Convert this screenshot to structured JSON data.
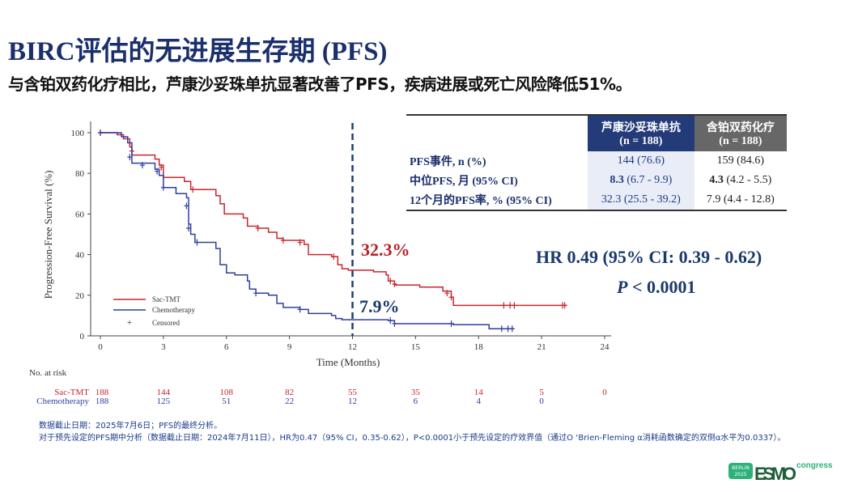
{
  "title": "BIRC评估的无进展生存期 (PFS)",
  "subtitle": "与含铂双药化疗相比，芦康沙妥珠单抗显著改善了PFS，疾病进展或死亡风险降低51%。",
  "table": {
    "headers": [
      {
        "name": "芦康沙妥珠单抗",
        "n": "(n = 188)"
      },
      {
        "name": "含铂双药化疗",
        "n": "(n = 188)"
      }
    ],
    "rows": [
      {
        "label": "PFS事件, n (%)",
        "a": "144 (76.6)",
        "b": "159 (84.6)"
      },
      {
        "label": "中位PFS, 月 (95% CI)",
        "a_bold": "8.3",
        "a": " (6.7 - 9.9)",
        "b_bold": "4.3",
        "b": " (4.2 - 5.5)"
      },
      {
        "label": "12个月的PFS率, % (95% CI)",
        "a": "32.3 (25.5 - 39.2)",
        "b": "7.9 (4.4 - 12.8)"
      }
    ],
    "colors": {
      "a": "#243b7a",
      "b": "#676767"
    }
  },
  "hr_text": "HR 0.49 (95% CI: 0.39 - 0.62)",
  "p_italic": "P",
  "p_text": " < 0.0001",
  "annotations": {
    "sac": "32.3%",
    "chemo": "7.9%"
  },
  "chart_data": {
    "type": "line",
    "step": true,
    "xlabel": "Time (Months)",
    "ylabel": "Progression-Free Survival (%)",
    "xlim": [
      0,
      24
    ],
    "ylim": [
      0,
      100
    ],
    "xticks": [
      0,
      3,
      6,
      9,
      12,
      15,
      18,
      21,
      24
    ],
    "yticks": [
      0,
      20,
      40,
      60,
      80,
      100
    ],
    "reference_line_x": 12,
    "legend": {
      "placement": "bottom-left",
      "censored_label": "Censored"
    },
    "series": [
      {
        "name": "Sac-TMT",
        "color": "#c8262e",
        "points": [
          [
            0,
            100
          ],
          [
            0.8,
            99
          ],
          [
            1.1,
            97
          ],
          [
            1.4,
            93
          ],
          [
            1.5,
            89
          ],
          [
            2.6,
            87
          ],
          [
            2.8,
            84
          ],
          [
            3.0,
            78
          ],
          [
            4.0,
            76
          ],
          [
            4.3,
            72
          ],
          [
            5.5,
            69
          ],
          [
            5.7,
            65
          ],
          [
            5.9,
            60
          ],
          [
            6.8,
            58
          ],
          [
            7.0,
            54
          ],
          [
            7.5,
            53
          ],
          [
            8.0,
            51
          ],
          [
            8.4,
            48
          ],
          [
            8.7,
            47
          ],
          [
            9.7,
            45
          ],
          [
            9.9,
            40
          ],
          [
            11.0,
            39
          ],
          [
            11.3,
            35
          ],
          [
            11.5,
            33
          ],
          [
            11.8,
            32.3
          ],
          [
            13.0,
            31.5
          ],
          [
            13.6,
            30
          ],
          [
            13.7,
            27
          ],
          [
            14.0,
            25
          ],
          [
            15.2,
            24
          ],
          [
            16.3,
            22
          ],
          [
            16.7,
            19
          ],
          [
            16.8,
            15
          ],
          [
            22.2,
            15
          ]
        ],
        "censored": [
          [
            0,
            100
          ],
          [
            1.5,
            91
          ],
          [
            2.9,
            83
          ],
          [
            4.4,
            72
          ],
          [
            7.5,
            53
          ],
          [
            8.7,
            47
          ],
          [
            9.5,
            46
          ],
          [
            11.1,
            39
          ],
          [
            13.8,
            27
          ],
          [
            14,
            25.5
          ],
          [
            16.5,
            21
          ],
          [
            16.7,
            19
          ],
          [
            19.2,
            15
          ],
          [
            19.5,
            15
          ],
          [
            19.7,
            15
          ],
          [
            22,
            15
          ],
          [
            22.1,
            15
          ]
        ]
      },
      {
        "name": "Chemotherapy",
        "color": "#2e3f9e",
        "points": [
          [
            0,
            100
          ],
          [
            1.0,
            98
          ],
          [
            1.3,
            95
          ],
          [
            1.5,
            85
          ],
          [
            2.6,
            82
          ],
          [
            2.8,
            79
          ],
          [
            3.0,
            73
          ],
          [
            3.6,
            70
          ],
          [
            4.1,
            68
          ],
          [
            4.2,
            55
          ],
          [
            4.3,
            50
          ],
          [
            4.5,
            46
          ],
          [
            5.5,
            43
          ],
          [
            5.7,
            35
          ],
          [
            6.0,
            31
          ],
          [
            6.4,
            30
          ],
          [
            7.0,
            27
          ],
          [
            7.1,
            23
          ],
          [
            7.4,
            21
          ],
          [
            8.0,
            20
          ],
          [
            8.4,
            16
          ],
          [
            8.7,
            14
          ],
          [
            9.5,
            13
          ],
          [
            9.9,
            11
          ],
          [
            11.0,
            10
          ],
          [
            11.2,
            8.5
          ],
          [
            11.5,
            7.9
          ],
          [
            13.7,
            7.5
          ],
          [
            14.0,
            6
          ],
          [
            16.7,
            6
          ],
          [
            16.8,
            5.5
          ],
          [
            18.5,
            3.5
          ],
          [
            19.7,
            3.5
          ]
        ],
        "censored": [
          [
            0,
            100
          ],
          [
            1.4,
            88
          ],
          [
            2.0,
            84
          ],
          [
            2.7,
            81
          ],
          [
            3.0,
            73
          ],
          [
            4.1,
            64
          ],
          [
            4.2,
            53
          ],
          [
            4.6,
            46
          ],
          [
            7.4,
            21
          ],
          [
            9.5,
            13
          ],
          [
            13.8,
            7.5
          ],
          [
            14.0,
            6
          ],
          [
            16.7,
            6
          ],
          [
            19.1,
            3.5
          ],
          [
            19.4,
            3.5
          ],
          [
            19.6,
            3.5
          ]
        ]
      }
    ],
    "risk_table": {
      "title": "No. at risk",
      "times": [
        0,
        3,
        6,
        9,
        12,
        15,
        18,
        21,
        24
      ],
      "rows": [
        {
          "name": "Sac-TMT",
          "values": [
            188,
            144,
            108,
            82,
            55,
            35,
            14,
            5,
            0
          ]
        },
        {
          "name": "Chemotherapy",
          "values": [
            188,
            125,
            51,
            22,
            12,
            6,
            4,
            0
          ]
        }
      ]
    }
  },
  "footnotes": [
    "数据截止日期：2025年7月6日；PFS的最终分析。",
    "对于预先设定的PFS期中分析（数据截止日期：2024年7月11日），HR为0.47（95% CI，0.35-0.62），P<0.0001小于预先设定的疗效界值（通过O ‘Brien-Fleming α消耗函数确定的双侧α水平为0.0337）。"
  ],
  "logo": {
    "city": "BERLIN",
    "year": "2025",
    "brand": "ESMO",
    "suffix": "congress"
  }
}
